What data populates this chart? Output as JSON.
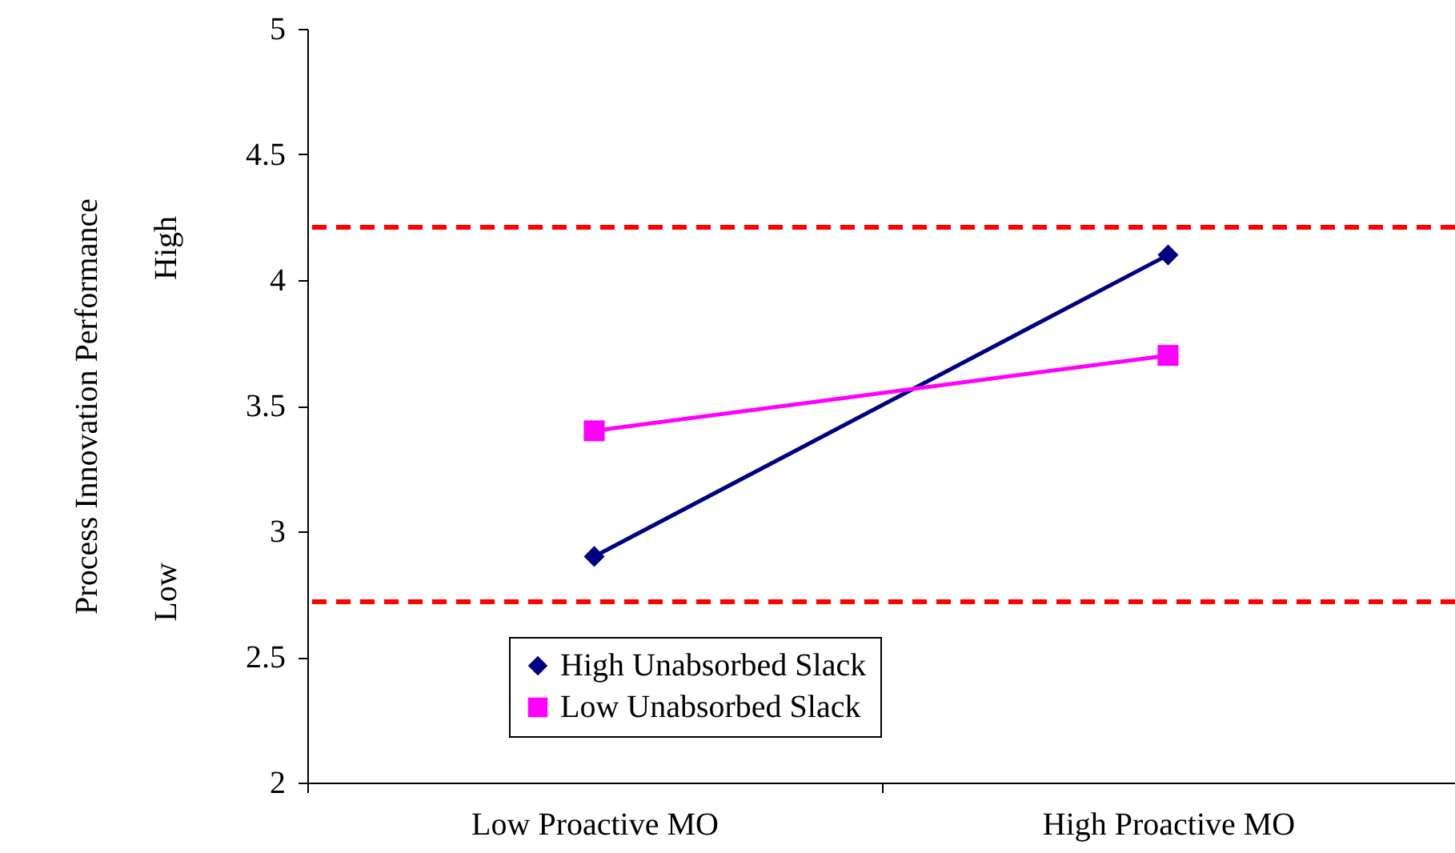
{
  "chart_data": {
    "type": "line",
    "ylabel": "Process Innovation Performance",
    "categories": [
      "Low Proactive MO",
      "High Proactive MO"
    ],
    "series": [
      {
        "name": "High Unabsorbed Slack",
        "color": "#000080",
        "values": [
          2.9,
          4.1
        ],
        "marker": "diamond"
      },
      {
        "name": "Low Unabsorbed Slack",
        "color": "#ff00ff",
        "values": [
          3.4,
          3.7
        ],
        "marker": "square"
      }
    ],
    "ylim": [
      2,
      5
    ],
    "yticks": [
      2,
      2.5,
      3,
      3.5,
      4,
      4.5,
      5
    ],
    "ref_lines": [
      {
        "axis": "y",
        "value": 4.21,
        "color": "#ff0000",
        "line_style": "dashed"
      },
      {
        "axis": "y",
        "value": 2.72,
        "color": "#ff0000",
        "line_style": "dashed"
      }
    ],
    "annotations": [
      "High",
      "Low"
    ],
    "grid": false,
    "legend": "bottom"
  }
}
